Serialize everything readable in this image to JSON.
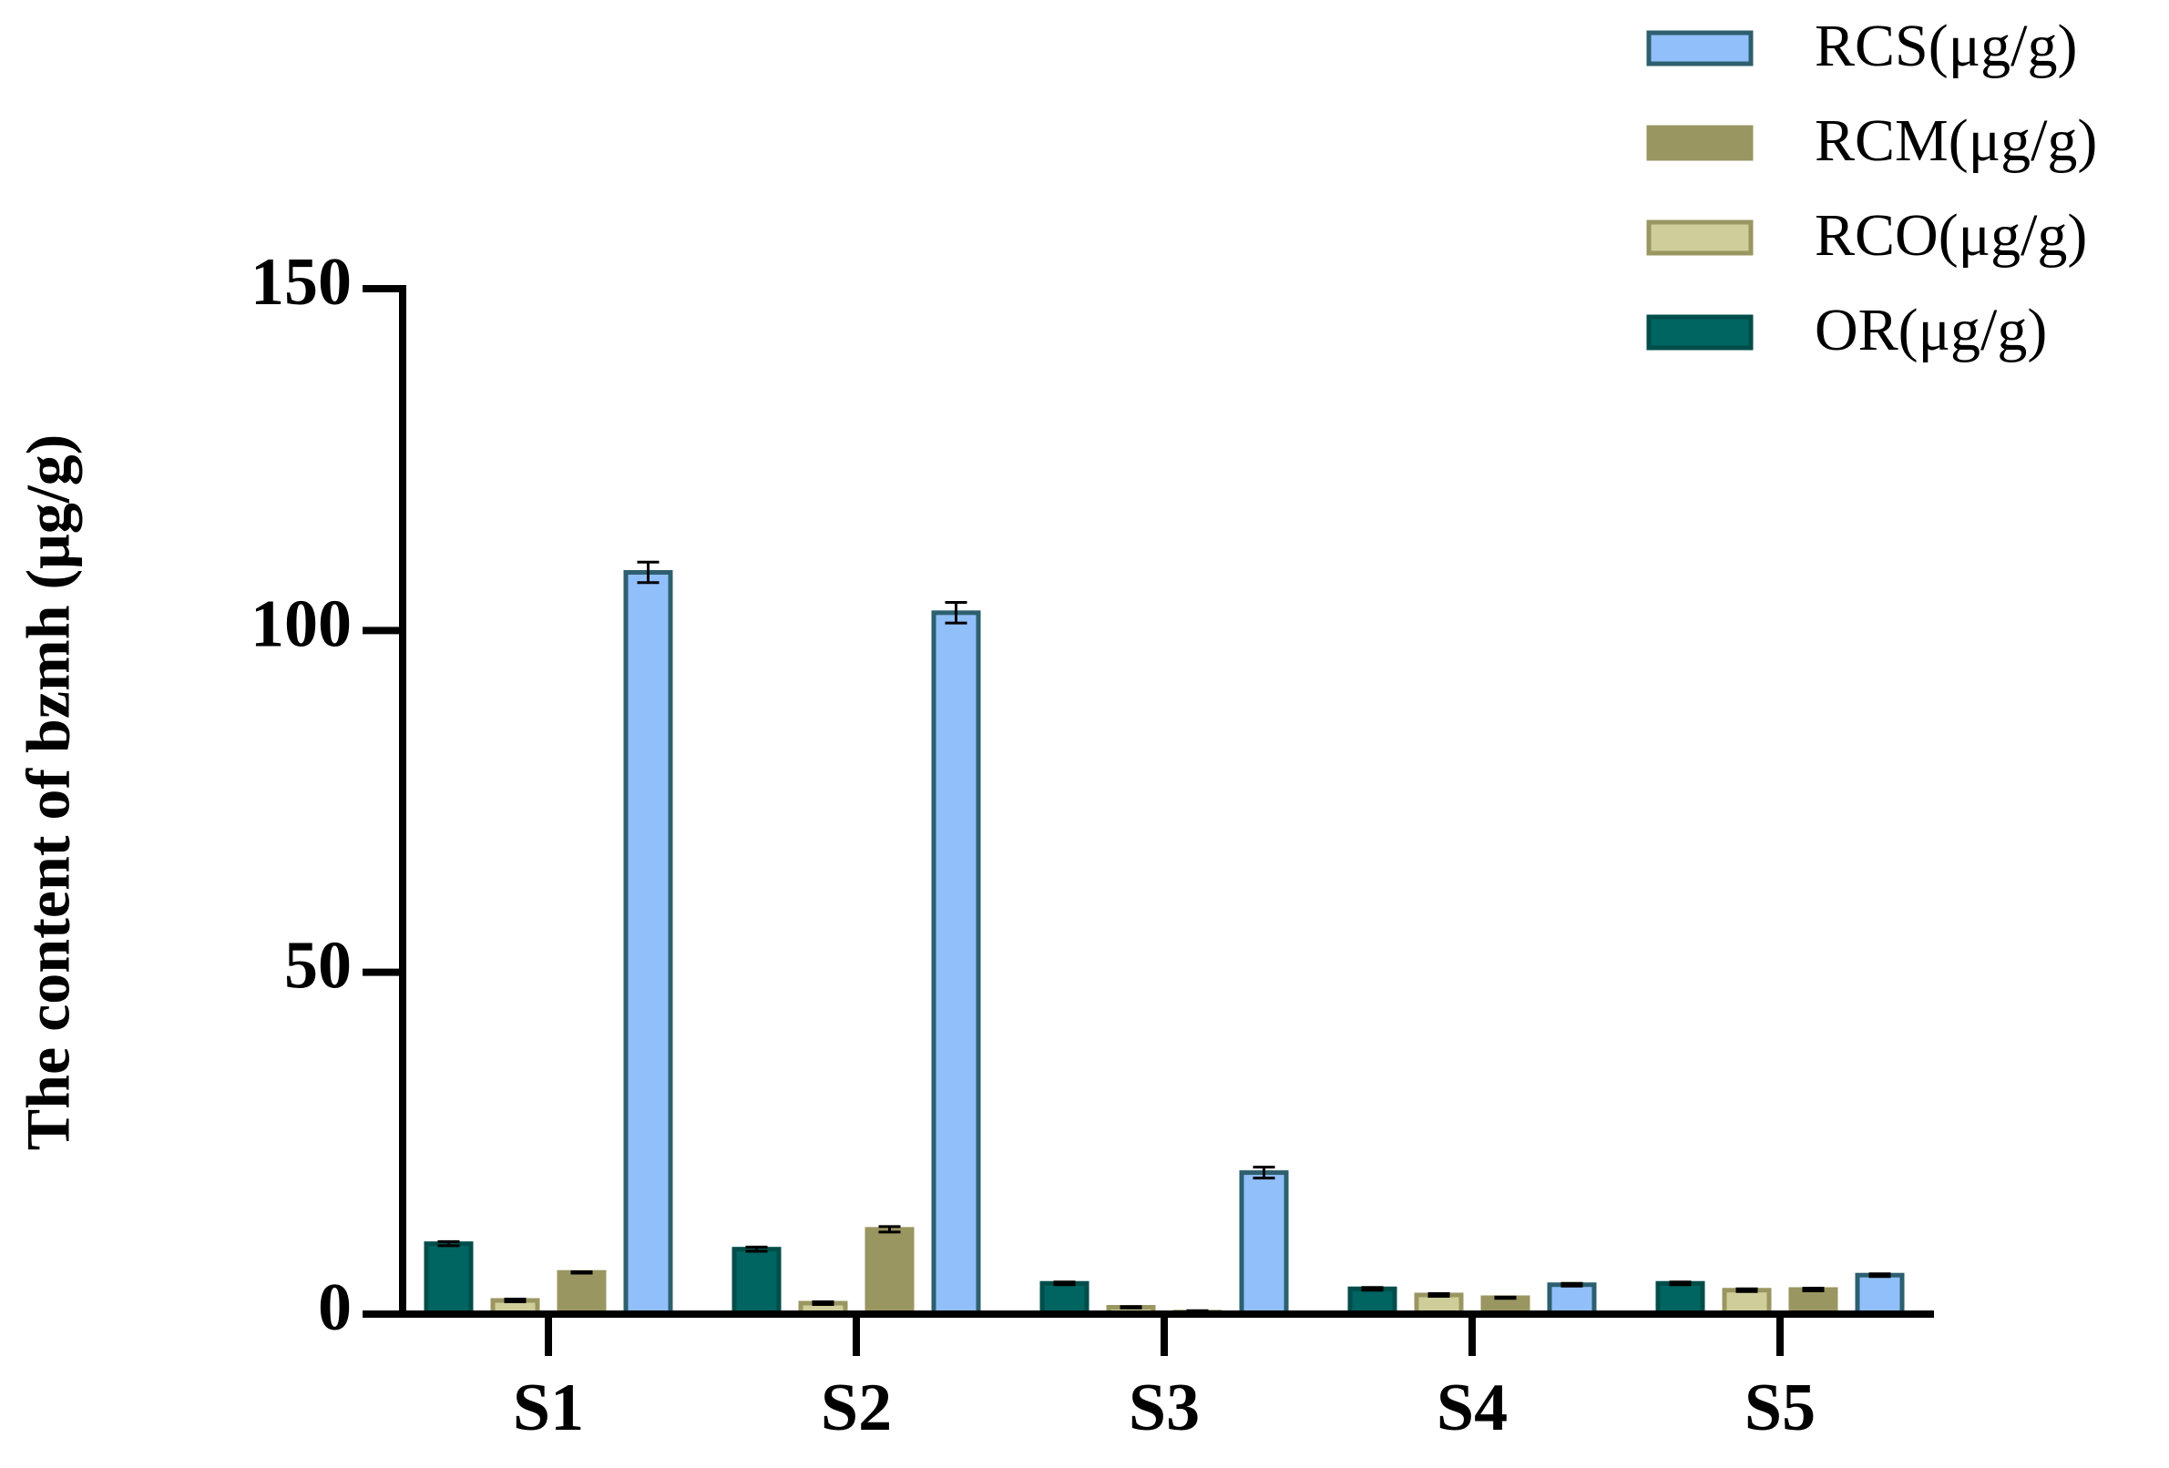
{
  "chart_data": {
    "type": "bar",
    "y_label": "The content of bzmh (μg/g)",
    "categories": [
      "S1",
      "S2",
      "S3",
      "S4",
      "S5"
    ],
    "series": [
      {
        "name": "OR(μg/g)",
        "color": "#006461",
        "edge": "#004d4a",
        "values": [
          10.3,
          9.5,
          4.5,
          3.7,
          4.5
        ],
        "errors": [
          0.3,
          0.3,
          0.2,
          0.2,
          0.2
        ]
      },
      {
        "name": "RCO(μg/g)",
        "color": "#cfcd9a",
        "edge": "#9a9662",
        "values": [
          2.0,
          1.6,
          1.0,
          2.8,
          3.5
        ],
        "errors": [
          0.2,
          0.2,
          0.1,
          0.2,
          0.2
        ]
      },
      {
        "name": "RCM(μg/g)",
        "color": "#9a9662",
        "edge": "#9a9662",
        "values": [
          6.1,
          12.4,
          0.3,
          2.4,
          3.6
        ],
        "errors": [
          0.1,
          0.4,
          0.2,
          0.1,
          0.2
        ]
      },
      {
        "name": "RCS(μg/g)",
        "color": "#91bff9",
        "edge": "#2d5f6e",
        "values": [
          108.5,
          102.6,
          20.7,
          4.3,
          5.7
        ],
        "errors": [
          1.5,
          1.5,
          0.8,
          0.2,
          0.2
        ]
      }
    ],
    "ylim": [
      0,
      150
    ],
    "yticks": [
      0,
      50,
      100,
      150
    ]
  }
}
